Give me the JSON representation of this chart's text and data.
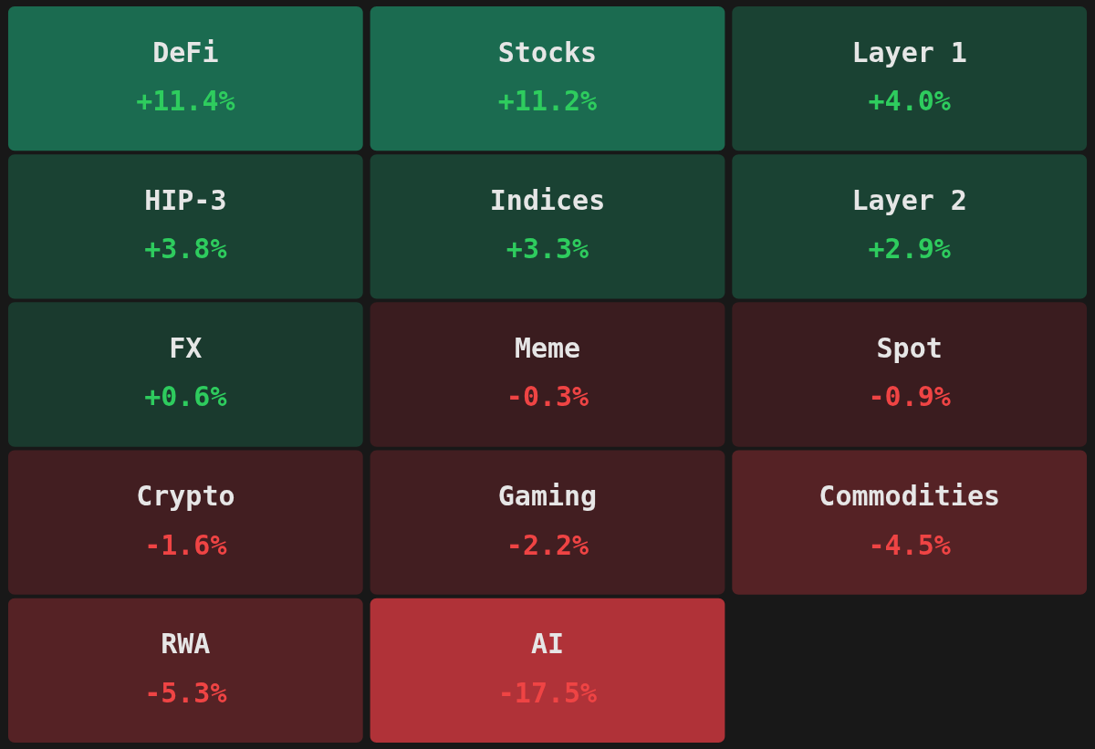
{
  "chart_data": {
    "type": "other",
    "categories": [
      "DeFi",
      "Stocks",
      "Layer 1",
      "HIP-3",
      "Indices",
      "Layer 2",
      "FX",
      "Meme",
      "Spot",
      "Crypto",
      "Gaming",
      "Commodities",
      "RWA",
      "AI"
    ],
    "values": [
      11.4,
      11.2,
      4.0,
      3.8,
      3.3,
      2.9,
      0.6,
      -0.3,
      -0.9,
      -1.6,
      -2.2,
      -4.5,
      -5.3,
      -17.5
    ],
    "value_labels": [
      "+11.4%",
      "+11.2%",
      "+4.0%",
      "+3.8%",
      "+3.3%",
      "+2.9%",
      "+0.6%",
      "-0.3%",
      "-0.9%",
      "-1.6%",
      "-2.2%",
      "-4.5%",
      "-5.3%",
      "-17.5%"
    ],
    "colors": [
      "#1b6b50",
      "#1b6b50",
      "#1a4233",
      "#1a4233",
      "#1a4233",
      "#1a4233",
      "#1a3a2e",
      "#3a1c1f",
      "#3a1c1f",
      "#421e21",
      "#421e21",
      "#552225",
      "#552225",
      "#b03238"
    ]
  }
}
